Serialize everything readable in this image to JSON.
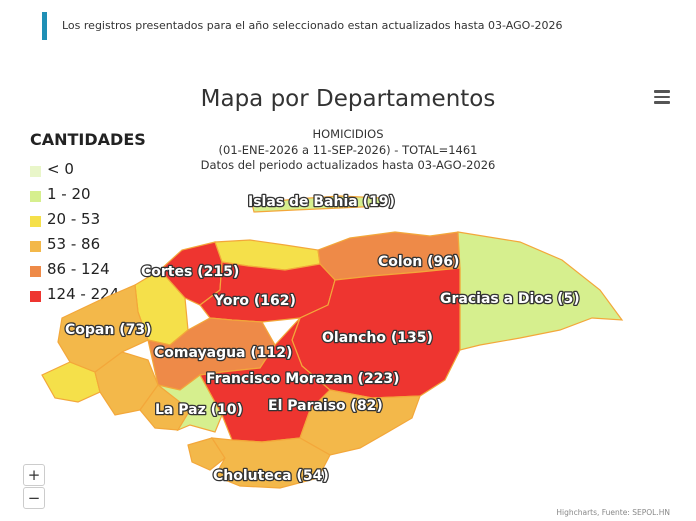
{
  "notice": "Los registros presentados para el año seleccionado estan actualizados hasta 03-AGO-2026",
  "title": "Mapa por Departamentos",
  "subtitle": {
    "line1": "HOMICIDIOS",
    "line2": "(01-ENE-2026 a 11-SEP-2026) - TOTAL=1461",
    "line3": "Datos del periodo actualizados hasta 03-AGO-2026"
  },
  "menu_icon": "hamburger-menu-icon",
  "legend": {
    "title": "CANTIDADES",
    "items": [
      {
        "label": "< 0",
        "color": "#e9f6c9"
      },
      {
        "label": "1 - 20",
        "color": "#d6ef8e"
      },
      {
        "label": "20 - 53",
        "color": "#f5e04a"
      },
      {
        "label": "53 - 86",
        "color": "#f3b84a"
      },
      {
        "label": "86 - 124",
        "color": "#ee8a48"
      },
      {
        "label": "124 - 224",
        "color": "#ee3530"
      }
    ]
  },
  "departments": [
    {
      "label": "Islas de Bahia (19)",
      "color": "#d6ef8e"
    },
    {
      "label": "Cortes (215)",
      "color": "#ee3530"
    },
    {
      "label": "Colon (96)",
      "color": "#ee8a48"
    },
    {
      "label": "Yoro (162)",
      "color": "#ee3530"
    },
    {
      "label": "Gracias a Dios (5)",
      "color": "#d6ef8e"
    },
    {
      "label": "Copan (73)",
      "color": "#f3b84a"
    },
    {
      "label": "Olancho (135)",
      "color": "#ee3530"
    },
    {
      "label": "Comayagua (112)",
      "color": "#ee8a48"
    },
    {
      "label": "Francisco Morazan (223)",
      "color": "#ee3530"
    },
    {
      "label": "La Paz (10)",
      "color": "#d6ef8e"
    },
    {
      "label": "El Paraiso (82)",
      "color": "#f3b84a"
    },
    {
      "label": "Choluteca (54)",
      "color": "#f3b84a"
    },
    {
      "label": "",
      "color": "#f5e04a"
    },
    {
      "label": "",
      "color": "#f3b84a"
    },
    {
      "label": "",
      "color": "#f3b84a"
    },
    {
      "label": "",
      "color": "#f5e04a"
    },
    {
      "label": "",
      "color": "#f3b84a"
    },
    {
      "label": "",
      "color": "#f5e04a"
    }
  ],
  "zoom": {
    "in_label": "+",
    "out_label": "−"
  },
  "credits": "Highcharts, Fuente: SEPOL.HN"
}
